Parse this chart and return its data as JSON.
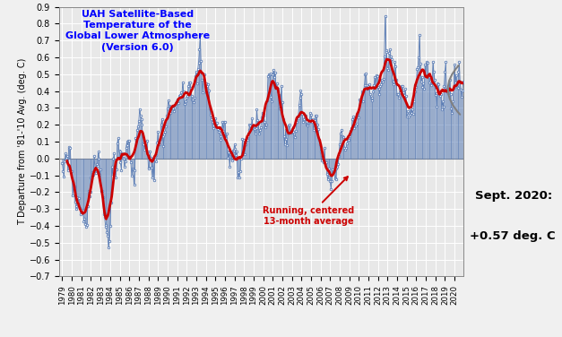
{
  "title_lines": "UAH Satellite-Based\nTemperature of the\nGlobal Lower Atmosphere\n(Version 6.0)",
  "ylabel": "T Departure from '81-'10 Avg. (deg. C)",
  "ylim": [
    -0.7,
    0.9
  ],
  "yticks": [
    -0.7,
    -0.6,
    -0.5,
    -0.4,
    -0.3,
    -0.2,
    -0.1,
    0.0,
    0.1,
    0.2,
    0.3,
    0.4,
    0.5,
    0.6,
    0.7,
    0.8,
    0.9
  ],
  "annotation_text": "Running, centered\n13-month average",
  "sept2020_text1": "Sept. 2020:",
  "sept2020_text2": "+0.57 deg. C",
  "line_color": "#5b7db5",
  "smooth_color": "#cc0000",
  "bg_color": "#e8e8e8",
  "grid_color": "#ffffff",
  "monthly_data": [
    -0.026,
    -0.074,
    -0.109,
    -0.015,
    0.029,
    0.006,
    0.012,
    -0.069,
    0.058,
    0.066,
    0.063,
    -0.074,
    -0.074,
    -0.222,
    -0.173,
    -0.168,
    -0.256,
    -0.286,
    -0.3,
    -0.231,
    -0.259,
    -0.235,
    -0.296,
    -0.333,
    -0.304,
    -0.321,
    -0.312,
    -0.375,
    -0.356,
    -0.388,
    -0.404,
    -0.393,
    -0.281,
    -0.192,
    -0.223,
    -0.196,
    -0.112,
    -0.119,
    -0.079,
    -0.096,
    0.016,
    -0.058,
    -0.086,
    -0.032,
    -0.042,
    0.039,
    -0.004,
    -0.098,
    -0.064,
    -0.193,
    -0.193,
    -0.23,
    -0.332,
    -0.345,
    -0.393,
    -0.406,
    -0.437,
    -0.46,
    -0.53,
    -0.491,
    -0.402,
    -0.262,
    -0.049,
    -0.092,
    -0.003,
    0.029,
    -0.07,
    -0.112,
    -0.063,
    0.09,
    0.12,
    0.044,
    0.042,
    -0.023,
    -0.07,
    0.03,
    0.006,
    -0.004,
    -0.05,
    -0.02,
    0.065,
    0.097,
    0.076,
    0.105,
    0.107,
    0.01,
    -0.022,
    -0.1,
    -0.06,
    -0.064,
    -0.157,
    -0.069,
    0.121,
    0.109,
    0.167,
    0.192,
    0.224,
    0.293,
    0.253,
    0.235,
    0.199,
    0.088,
    0.083,
    0.052,
    0.096,
    0.094,
    0.105,
    0.042,
    -0.054,
    -0.06,
    0.039,
    0.004,
    -0.054,
    -0.115,
    -0.003,
    -0.127,
    -0.007,
    -0.018,
    0.019,
    0.094,
    0.158,
    0.1,
    0.083,
    0.115,
    0.2,
    0.235,
    0.131,
    0.073,
    0.144,
    0.158,
    0.192,
    0.256,
    0.297,
    0.346,
    0.311,
    0.306,
    0.268,
    0.295,
    0.309,
    0.294,
    0.28,
    0.3,
    0.323,
    0.335,
    0.348,
    0.339,
    0.327,
    0.37,
    0.374,
    0.39,
    0.367,
    0.452,
    0.398,
    0.325,
    0.325,
    0.339,
    0.361,
    0.373,
    0.432,
    0.451,
    0.452,
    0.42,
    0.373,
    0.348,
    0.351,
    0.335,
    0.358,
    0.49,
    0.512,
    0.446,
    0.529,
    0.57,
    0.645,
    0.732,
    0.58,
    0.466,
    0.39,
    0.464,
    0.498,
    0.438,
    0.444,
    0.391,
    0.432,
    0.442,
    0.405,
    0.296,
    0.259,
    0.234,
    0.215,
    0.177,
    0.197,
    0.215,
    0.237,
    0.213,
    0.211,
    0.175,
    0.157,
    0.168,
    0.13,
    0.111,
    0.163,
    0.219,
    0.165,
    0.214,
    0.218,
    0.123,
    0.145,
    0.04,
    0.004,
    0.037,
    -0.048,
    0.026,
    0.023,
    -0.012,
    0.044,
    0.049,
    0.081,
    0.058,
    0.021,
    0.039,
    -0.113,
    -0.083,
    -0.112,
    -0.075,
    -0.003,
    0.026,
    0.113,
    0.029,
    0.111,
    0.025,
    0.082,
    0.115,
    0.111,
    0.133,
    0.167,
    0.198,
    0.197,
    0.178,
    0.237,
    0.187,
    0.179,
    0.173,
    0.145,
    0.181,
    0.291,
    0.228,
    0.208,
    0.146,
    0.168,
    0.185,
    0.241,
    0.271,
    0.264,
    0.255,
    0.215,
    0.185,
    0.198,
    0.342,
    0.488,
    0.501,
    0.5,
    0.504,
    0.366,
    0.339,
    0.498,
    0.524,
    0.481,
    0.507,
    0.418,
    0.443,
    0.398,
    0.416,
    0.375,
    0.296,
    0.327,
    0.431,
    0.336,
    0.231,
    0.129,
    0.082,
    0.169,
    0.115,
    0.077,
    0.146,
    0.194,
    0.199,
    0.164,
    0.152,
    0.167,
    0.183,
    0.156,
    0.131,
    0.126,
    0.165,
    0.216,
    0.251,
    0.239,
    0.316,
    0.359,
    0.402,
    0.382,
    0.265,
    0.214,
    0.232,
    0.244,
    0.253,
    0.198,
    0.196,
    0.206,
    0.212,
    0.218,
    0.272,
    0.257,
    0.218,
    0.23,
    0.168,
    0.195,
    0.228,
    0.256,
    0.253,
    0.2,
    0.172,
    0.11,
    0.086,
    0.042,
    -0.012,
    0.011,
    0.011,
    -0.022,
    0.06,
    -0.026,
    -0.024,
    -0.094,
    -0.126,
    -0.098,
    -0.062,
    -0.136,
    -0.18,
    -0.134,
    -0.066,
    -0.074,
    -0.076,
    -0.117,
    -0.124,
    -0.058,
    -0.048,
    -0.032,
    0.017,
    0.085,
    0.148,
    0.171,
    0.13,
    0.125,
    0.117,
    0.063,
    0.05,
    0.06,
    0.09,
    0.108,
    0.11,
    0.134,
    0.15,
    0.164,
    0.18,
    0.234,
    0.246,
    0.182,
    0.197,
    0.195,
    0.206,
    0.269,
    0.241,
    0.244,
    0.348,
    0.338,
    0.346,
    0.398,
    0.341,
    0.401,
    0.435,
    0.5,
    0.504,
    0.434,
    0.413,
    0.432,
    0.439,
    0.383,
    0.36,
    0.361,
    0.345,
    0.395,
    0.435,
    0.484,
    0.43,
    0.491,
    0.487,
    0.424,
    0.415,
    0.38,
    0.432,
    0.441,
    0.467,
    0.457,
    0.474,
    0.603,
    0.842,
    0.64,
    0.63,
    0.537,
    0.527,
    0.624,
    0.647,
    0.606,
    0.59,
    0.462,
    0.438,
    0.455,
    0.574,
    0.545,
    0.465,
    0.379,
    0.38,
    0.359,
    0.394,
    0.421,
    0.401,
    0.43,
    0.431,
    0.393,
    0.376,
    0.413,
    0.369,
    0.246,
    0.257,
    0.279,
    0.249,
    0.257,
    0.294,
    0.269,
    0.292,
    0.262,
    0.339,
    0.396,
    0.433,
    0.425,
    0.531,
    0.54,
    0.6,
    0.732,
    0.565,
    0.457,
    0.485,
    0.425,
    0.443,
    0.415,
    0.556,
    0.492,
    0.571,
    0.568,
    0.5,
    0.483,
    0.448,
    0.46,
    0.434,
    0.449,
    0.574,
    0.512,
    0.468,
    0.378,
    0.389,
    0.306,
    0.445,
    0.44,
    0.399,
    0.369,
    0.382,
    0.293,
    0.338,
    0.306,
    0.43,
    0.513,
    0.575,
    0.397,
    0.412,
    0.386,
    0.376,
    0.468,
    0.383,
    0.295,
    0.271,
    0.337,
    0.418,
    0.557,
    0.449,
    0.494,
    0.422,
    0.417,
    0.512,
    0.575,
    0.455,
    0.406,
    0.363,
    0.404,
    0.455,
    0.452,
    0.459,
    0.472,
    0.403,
    0.468,
    0.395,
    0.444,
    0.571
  ],
  "start_year": 1979,
  "start_month": 1
}
